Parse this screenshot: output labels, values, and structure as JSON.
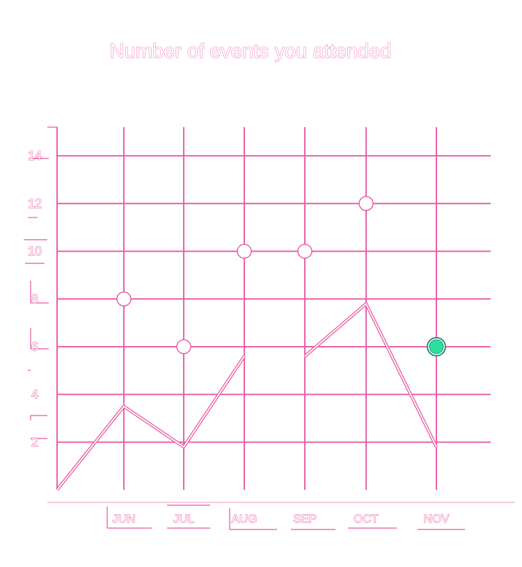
{
  "colors": {
    "grid": "#ea5fa8",
    "text_outline": "#e7549e",
    "line": "#ea5fa8",
    "point_fill": "#ffffff",
    "point_stroke": "#ea5fa8",
    "highlight_fill": "#2ee0a0",
    "highlight_ring": "#2a8f77"
  },
  "chart_data": {
    "type": "scatter",
    "title": "Number of events you attended",
    "xlabel": "",
    "ylabel": "",
    "categories": [
      "JUN",
      "JUL",
      "AUG",
      "SEP",
      "OCT",
      "NOV"
    ],
    "yticks": [
      2,
      4,
      6,
      8,
      10,
      12,
      14
    ],
    "ylim": [
      0,
      15.2
    ],
    "grid": true,
    "series": [
      {
        "kind": "points",
        "values": [
          8,
          6,
          10,
          10,
          12,
          6
        ],
        "highlight_index": 5
      },
      {
        "kind": "line",
        "segments": [
          [
            {
              "x": "start",
              "y": 0
            },
            {
              "x": "JUN",
              "y": 3.5
            },
            {
              "x": "JUL",
              "y": 1.8
            },
            {
              "x": "AUG",
              "y": 5.6
            }
          ],
          [
            {
              "x": "SEP",
              "y": 5.6
            },
            {
              "x": "OCT",
              "y": 7.8
            },
            {
              "x": "NOV",
              "y": 1.8
            }
          ]
        ]
      }
    ]
  }
}
